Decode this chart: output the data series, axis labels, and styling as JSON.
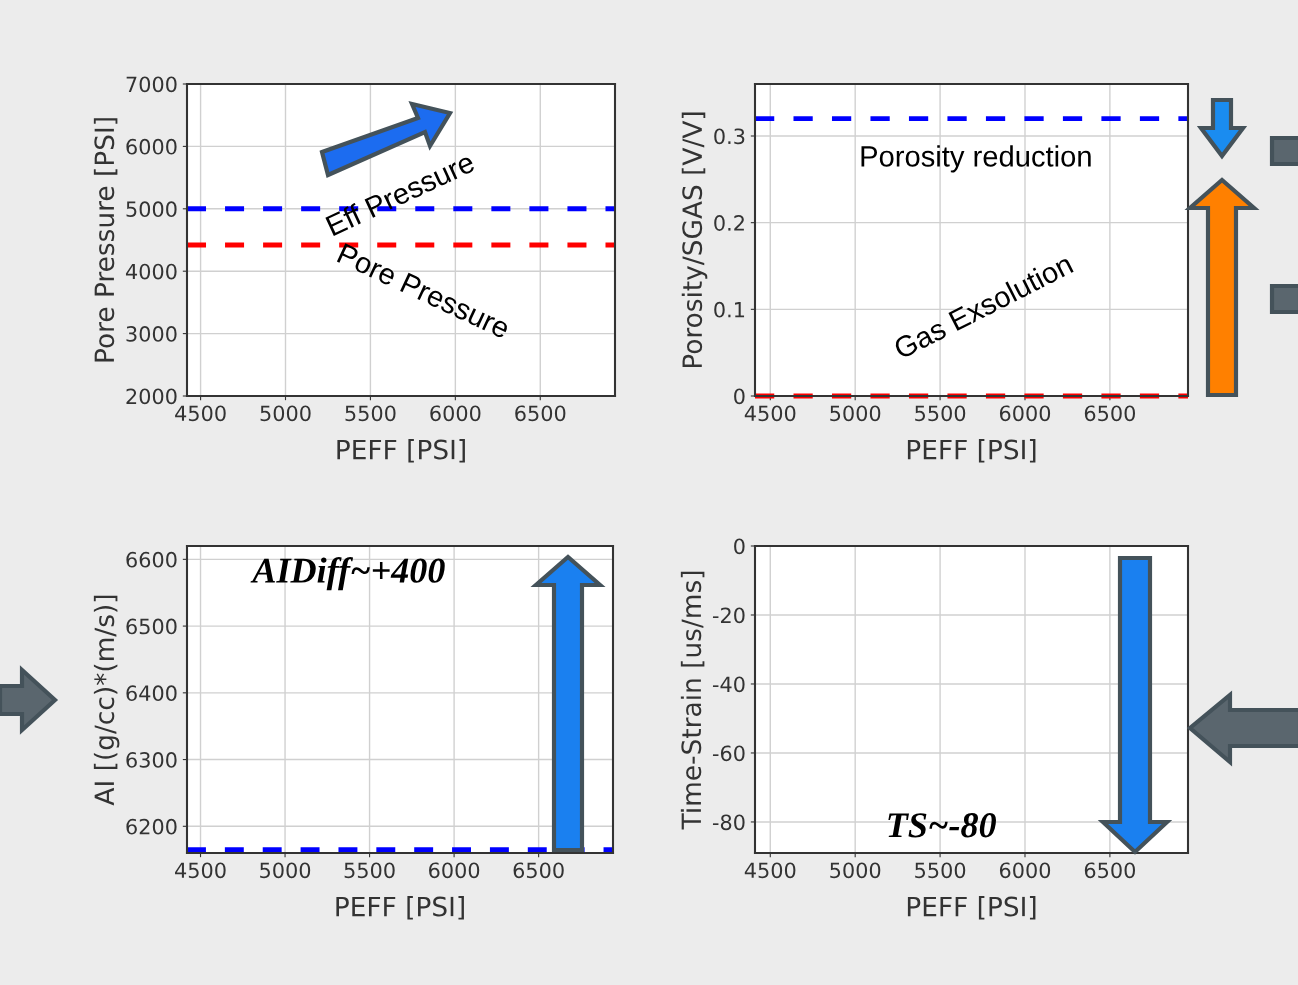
{
  "chart_data": [
    {
      "type": "line",
      "xlabel": "PEFF [PSI]",
      "ylabel": "Pore Pressure [PSI]",
      "xlim": [
        4420,
        6940
      ],
      "xticks": [
        4500,
        5000,
        5500,
        6000,
        6500
      ],
      "ylim": [
        2000,
        7000
      ],
      "yticks": [
        2000,
        3000,
        4000,
        5000,
        6000,
        7000
      ],
      "grid": true,
      "line_style": "dashed",
      "marker": "none",
      "series": [
        {
          "color": "#0000ff",
          "x": [
            4420,
            6940
          ],
          "values": [
            5000,
            5000
          ]
        },
        {
          "color": "#ff0000",
          "x": [
            4420,
            6940
          ],
          "values": [
            4420,
            4420
          ]
        }
      ],
      "annotations": [
        "Eff Pressure",
        "Pore Pressure"
      ]
    },
    {
      "type": "line",
      "xlabel": "PEFF [PSI]",
      "ylabel": "Porosity/SGAS [V/V]",
      "xlim": [
        4410,
        6960
      ],
      "xticks": [
        4500,
        5000,
        5500,
        6000,
        6500
      ],
      "ylim": [
        0,
        0.36
      ],
      "yticks": [
        0,
        0.1,
        0.2,
        0.3
      ],
      "grid": true,
      "line_style": "dashed",
      "marker": "none",
      "series": [
        {
          "color": "#0000ff",
          "x": [
            4410,
            6960
          ],
          "values": [
            0.32,
            0.32
          ]
        },
        {
          "color": "#ff0000",
          "x": [
            4410,
            6960
          ],
          "values": [
            0,
            0
          ]
        }
      ],
      "annotations": [
        "Porosity reduction",
        "Gas Exsolution"
      ]
    },
    {
      "type": "line",
      "xlabel": "PEFF [PSI]",
      "ylabel": "AI [(g/cc)*(m/s)]",
      "xlim": [
        4420,
        6940
      ],
      "xticks": [
        4500,
        5000,
        5500,
        6000,
        6500
      ],
      "ylim": [
        6160,
        6620
      ],
      "yticks": [
        6200,
        6300,
        6400,
        6500,
        6600
      ],
      "grid": true,
      "line_style": "dashed",
      "marker": "none",
      "series": [
        {
          "color": "#0000ff",
          "x": [
            4420,
            6940
          ],
          "values": [
            6165,
            6165
          ]
        }
      ],
      "annotations": [
        "AIDiff~+400"
      ]
    },
    {
      "type": "line",
      "xlabel": "PEFF [PSI]",
      "ylabel": "Time-Strain [us/ms]",
      "xlim": [
        4410,
        6960
      ],
      "xticks": [
        4500,
        5000,
        5500,
        6000,
        6500
      ],
      "ylim": [
        -89,
        0
      ],
      "yticks": [
        -80,
        -60,
        -40,
        -20,
        0
      ],
      "grid": true,
      "annotations": [
        "TS~-80"
      ]
    }
  ]
}
